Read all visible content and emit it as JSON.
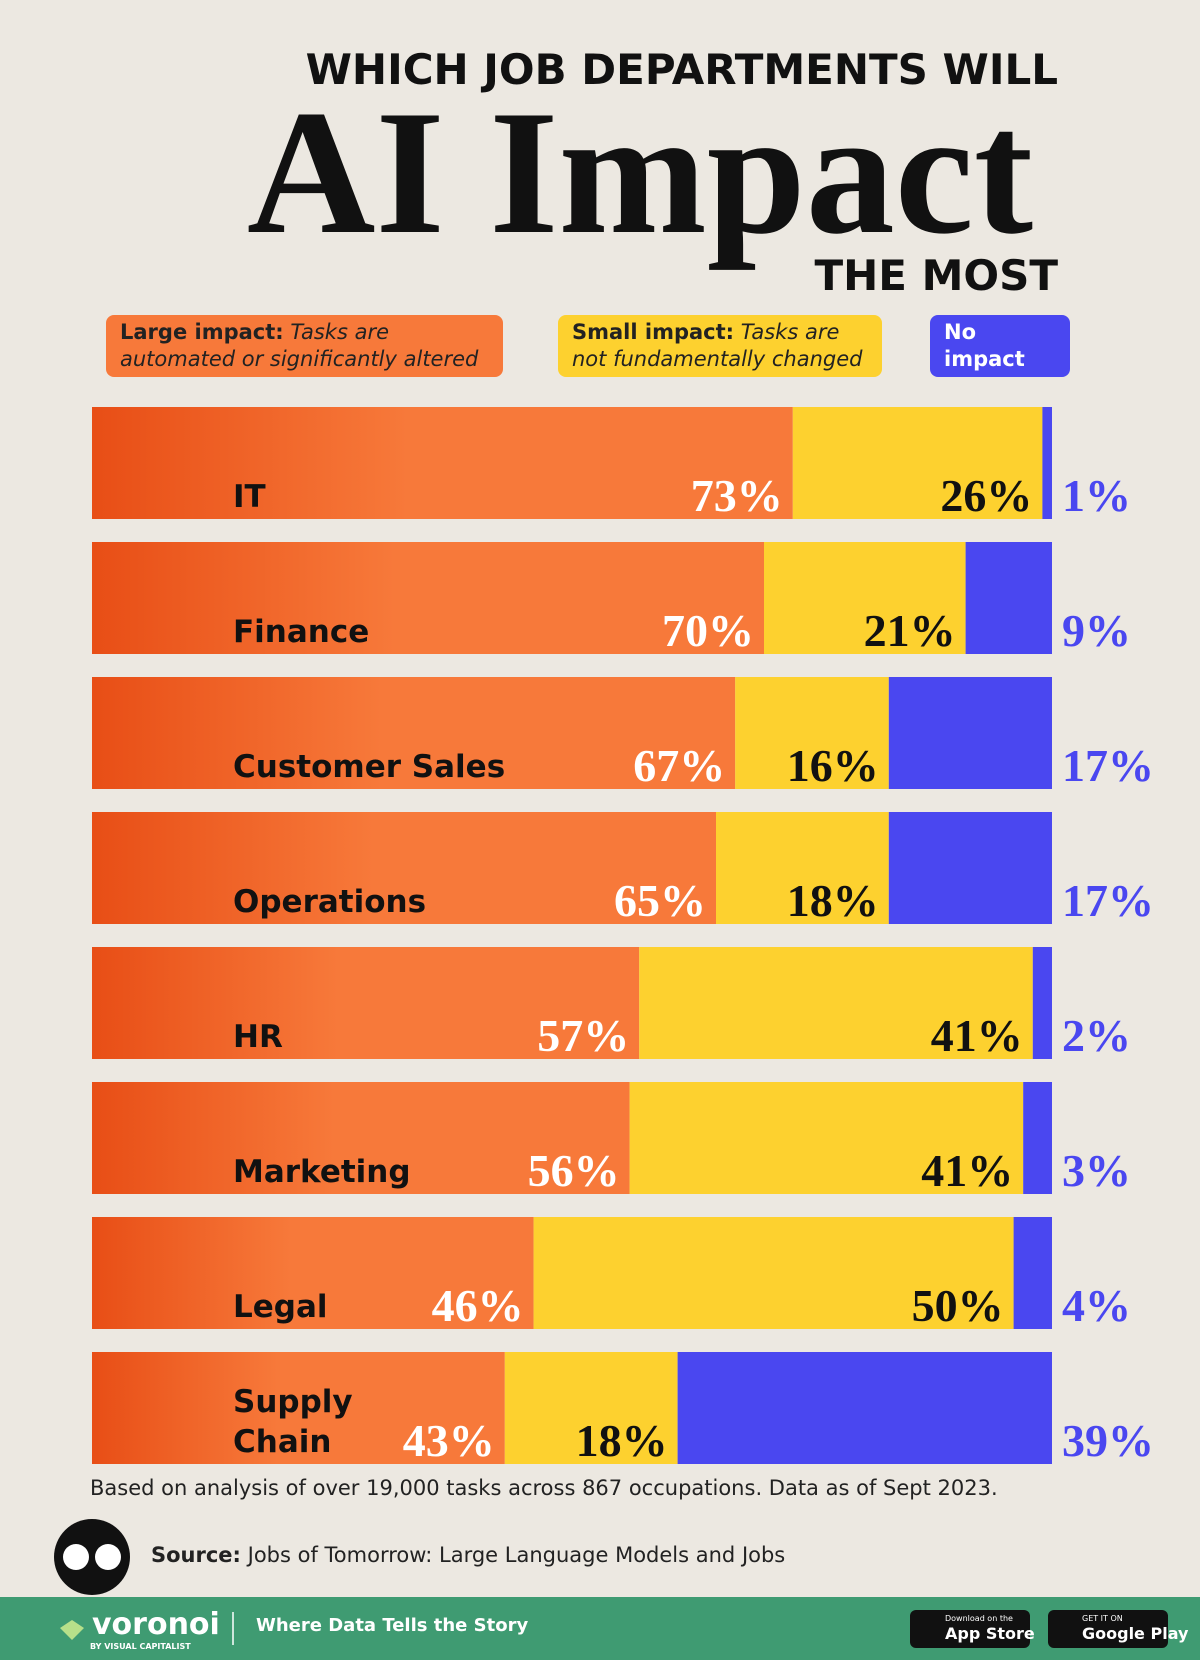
{
  "header": {
    "title_top": "WHICH JOB DEPARTMENTS WILL",
    "title_main": "AI Impact",
    "title_bottom": "THE MOST"
  },
  "chart_data": {
    "type": "stacked-bar-horizontal",
    "categories": [
      "IT",
      "Finance",
      "Customer Sales",
      "Operations",
      "HR",
      "Marketing",
      "Legal",
      "Supply Chain"
    ],
    "series": [
      {
        "name": "Large impact:",
        "description": "Tasks are automated or significantly altered",
        "color": "#f7793a",
        "values": [
          73,
          70,
          67,
          65,
          57,
          56,
          46,
          43
        ],
        "value_labels": [
          "73%",
          "70%",
          "67%",
          "65%",
          "57%",
          "56%",
          "46%",
          "43%"
        ]
      },
      {
        "name": "Small impact:",
        "description": "Tasks are not fundamentally changed",
        "color": "#fdd12f",
        "values": [
          26,
          21,
          16,
          18,
          41,
          41,
          50,
          18
        ],
        "value_labels": [
          "26%",
          "21%",
          "16%",
          "18%",
          "41%",
          "41%",
          "50%",
          "18%"
        ]
      },
      {
        "name": "No impact",
        "color": "#4a47f0",
        "values": [
          1,
          9,
          17,
          17,
          2,
          3,
          4,
          39
        ],
        "value_labels": [
          "1%",
          "9%",
          "17%",
          "17%",
          "2%",
          "3%",
          "4%",
          "39%"
        ]
      }
    ]
  },
  "notes": {
    "note": "Based on analysis of over 19,000 tasks across 867 occupations. Data as of Sept 2023.",
    "source_label": "Source:",
    "source": "Jobs of Tomorrow: Large Language Models and Jobs"
  },
  "footer": {
    "brand": "voronoi",
    "brand_sub": "BY VISUAL CAPITALIST",
    "tagline": "Where Data Tells the Story",
    "app_store_top": "Download on the",
    "app_store": "App Store",
    "google_top": "GET IT ON",
    "google": "Google Play"
  }
}
